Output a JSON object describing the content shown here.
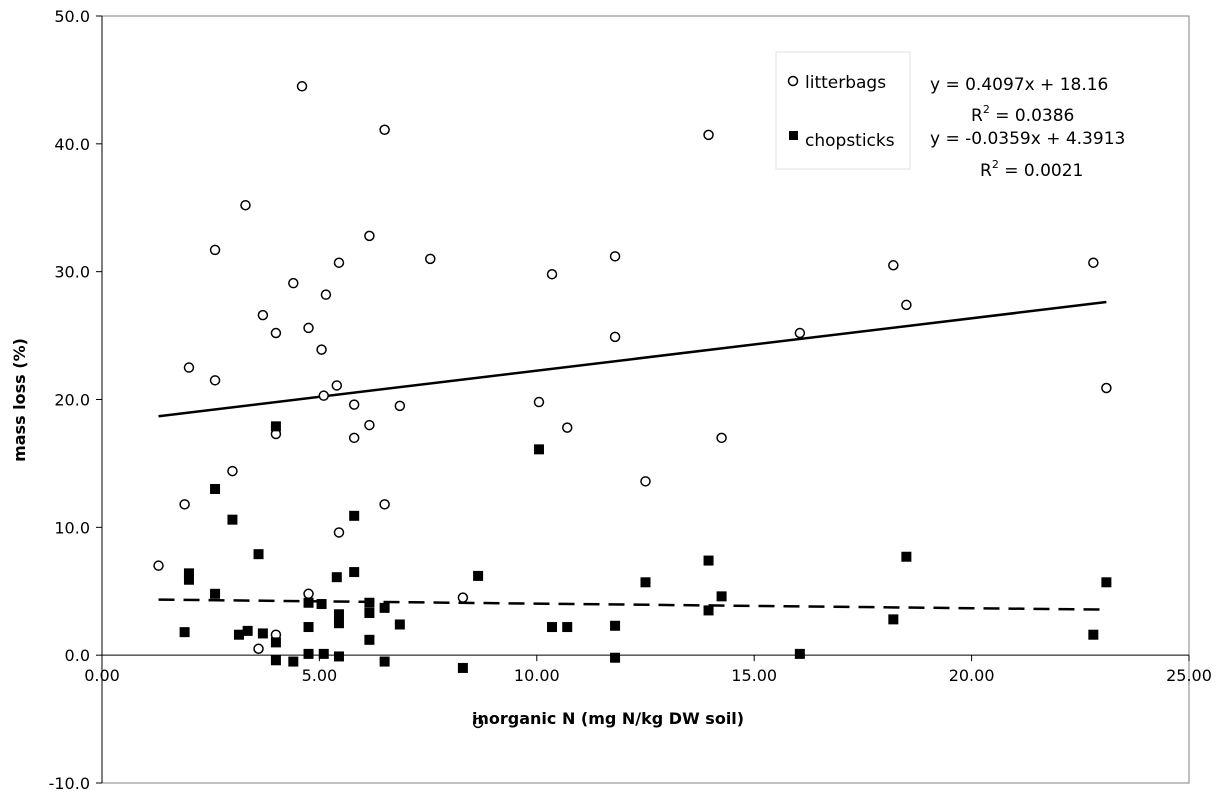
{
  "chart_data": {
    "type": "scatter",
    "title": "",
    "xlabel": "inorganic N (mg N/kg DW soil)",
    "ylabel": "mass loss (%)",
    "xlim": [
      0,
      25
    ],
    "ylim": [
      -10,
      50
    ],
    "x_ticks": [
      "0.00",
      "5.00",
      "10.00",
      "15.00",
      "20.00",
      "25.00"
    ],
    "y_ticks": [
      "-10.0",
      "0.0",
      "10.0",
      "20.0",
      "30.0",
      "40.0",
      "50.0"
    ],
    "grid": false,
    "legend_position": "top-right",
    "series": [
      {
        "name": "litterbags",
        "marker": "open-circle",
        "color": "#000000",
        "points": [
          [
            1.3,
            7.0
          ],
          [
            1.9,
            11.8
          ],
          [
            2.0,
            22.5
          ],
          [
            2.6,
            31.7
          ],
          [
            2.6,
            21.5
          ],
          [
            3.0,
            14.4
          ],
          [
            3.3,
            35.2
          ],
          [
            3.6,
            0.5
          ],
          [
            3.7,
            26.6
          ],
          [
            4.0,
            25.2
          ],
          [
            4.0,
            17.3
          ],
          [
            4.0,
            1.6
          ],
          [
            4.4,
            29.1
          ],
          [
            4.6,
            44.5
          ],
          [
            4.75,
            25.6
          ],
          [
            4.75,
            4.8
          ],
          [
            5.05,
            23.9
          ],
          [
            5.1,
            20.3
          ],
          [
            5.15,
            28.2
          ],
          [
            5.4,
            21.1
          ],
          [
            5.45,
            30.7
          ],
          [
            5.45,
            9.6
          ],
          [
            5.8,
            19.6
          ],
          [
            5.8,
            17.0
          ],
          [
            6.15,
            32.8
          ],
          [
            6.15,
            18.0
          ],
          [
            6.5,
            41.1
          ],
          [
            6.5,
            11.8
          ],
          [
            6.85,
            19.5
          ],
          [
            7.55,
            31.0
          ],
          [
            8.3,
            4.5
          ],
          [
            8.65,
            -5.3
          ],
          [
            10.05,
            19.8
          ],
          [
            10.35,
            29.8
          ],
          [
            10.7,
            17.8
          ],
          [
            11.8,
            31.2
          ],
          [
            11.8,
            24.9
          ],
          [
            12.5,
            13.6
          ],
          [
            13.95,
            40.7
          ],
          [
            14.25,
            17.0
          ],
          [
            16.05,
            25.2
          ],
          [
            18.2,
            30.5
          ],
          [
            18.5,
            27.4
          ],
          [
            22.8,
            30.7
          ],
          [
            23.1,
            20.9
          ]
        ]
      },
      {
        "name": "chopsticks",
        "marker": "filled-square",
        "color": "#000000",
        "points": [
          [
            1.9,
            1.8
          ],
          [
            2.0,
            6.4
          ],
          [
            2.0,
            5.9
          ],
          [
            2.6,
            13.0
          ],
          [
            2.6,
            4.8
          ],
          [
            3.0,
            10.6
          ],
          [
            3.15,
            1.6
          ],
          [
            3.35,
            1.9
          ],
          [
            3.6,
            7.9
          ],
          [
            3.7,
            1.7
          ],
          [
            4.0,
            17.9
          ],
          [
            4.0,
            1.0
          ],
          [
            4.0,
            -0.4
          ],
          [
            4.4,
            -0.5
          ],
          [
            4.75,
            4.1
          ],
          [
            4.75,
            2.2
          ],
          [
            4.75,
            0.1
          ],
          [
            5.05,
            4.0
          ],
          [
            5.1,
            0.1
          ],
          [
            5.4,
            6.1
          ],
          [
            5.45,
            3.2
          ],
          [
            5.45,
            2.5
          ],
          [
            5.45,
            -0.1
          ],
          [
            5.8,
            10.9
          ],
          [
            5.8,
            6.5
          ],
          [
            6.15,
            4.1
          ],
          [
            6.15,
            3.3
          ],
          [
            6.15,
            1.2
          ],
          [
            6.5,
            3.7
          ],
          [
            6.5,
            -0.5
          ],
          [
            6.85,
            2.4
          ],
          [
            8.3,
            -1.0
          ],
          [
            8.65,
            6.2
          ],
          [
            10.05,
            16.1
          ],
          [
            10.35,
            2.2
          ],
          [
            10.7,
            2.2
          ],
          [
            11.8,
            2.3
          ],
          [
            11.8,
            -0.2
          ],
          [
            12.5,
            5.7
          ],
          [
            13.95,
            7.4
          ],
          [
            13.95,
            3.5
          ],
          [
            14.25,
            4.6
          ],
          [
            16.05,
            0.1
          ],
          [
            18.2,
            2.8
          ],
          [
            18.5,
            7.7
          ],
          [
            22.8,
            1.6
          ],
          [
            23.1,
            5.7
          ]
        ]
      }
    ],
    "trendlines": [
      {
        "series": "litterbags",
        "style": "solid",
        "slope": 0.4097,
        "intercept": 18.16,
        "x_range": [
          1.3,
          23.1
        ],
        "equation": "y = 0.4097x + 18.16",
        "r2_label": "R",
        "r2_value": " = 0.0386"
      },
      {
        "series": "chopsticks",
        "style": "dashed",
        "slope": -0.0359,
        "intercept": 4.3913,
        "x_range": [
          1.3,
          23.1
        ],
        "equation": "y = -0.0359x + 4.3913",
        "r2_label": "R",
        "r2_value": " = 0.0021"
      }
    ],
    "legend": {
      "items": [
        {
          "label": "litterbags",
          "marker": "open-circle"
        },
        {
          "label": "chopsticks",
          "marker": "filled-square"
        }
      ]
    }
  }
}
